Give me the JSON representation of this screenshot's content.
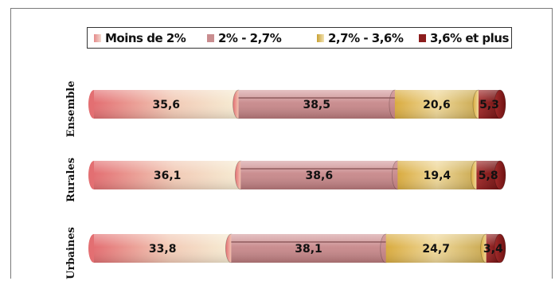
{
  "chart_data": {
    "type": "bar",
    "orientation": "horizontal",
    "stacked": "percent",
    "categories": [
      "Ensemble",
      "Rurales",
      "Urbaines"
    ],
    "series": [
      {
        "name": "Moins de 2%",
        "values": [
          35.6,
          36.1,
          33.8
        ],
        "color": "#e07a7a"
      },
      {
        "name": "2% - 2,7%",
        "values": [
          38.5,
          38.6,
          38.1
        ],
        "color": "#c98d8f"
      },
      {
        "name": "2,7% - 3,6%",
        "values": [
          20.6,
          19.4,
          24.7
        ],
        "color": "#c9a133"
      },
      {
        "name": "3,6% et plus",
        "values": [
          5.3,
          5.8,
          3.4
        ],
        "color": "#8c1d1d"
      }
    ],
    "legend_position": "top",
    "grid": false
  }
}
